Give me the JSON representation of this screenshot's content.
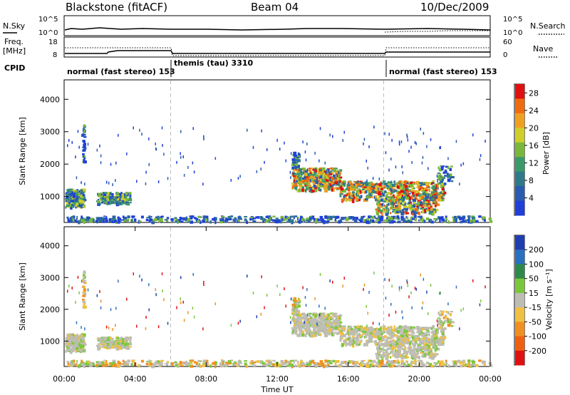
{
  "header": {
    "station": "Blackstone (fitACF)",
    "beam": "Beam 04",
    "date": "10/Dec/2009"
  },
  "summary_panel": {
    "left_labels": [
      "N.Sky",
      "Freq.",
      "[MHz]",
      "CPID"
    ],
    "right_labels": [
      "N.Search",
      "Nave"
    ],
    "nsky_ticks": [
      "10^5",
      "10^0"
    ],
    "nsearch_ticks": [
      "10^5",
      "10^0"
    ],
    "freq_ticks": [
      "18",
      "8"
    ],
    "nave_ticks": [
      "60",
      "0"
    ],
    "cpid_segments": [
      {
        "label": "normal (fast stereo) 153",
        "start_hour": 0
      },
      {
        "label": "themis (tau) 3310",
        "start_hour": 6
      },
      {
        "label": "normal (fast stereo) 153",
        "start_hour": 18
      }
    ]
  },
  "chart_data": [
    {
      "type": "heatmap",
      "name": "power",
      "ylabel": "Slant Range [km]",
      "yticks": [
        1000,
        2000,
        3000,
        4000
      ],
      "ylim": [
        200,
        4600
      ],
      "xlim_hours": [
        0,
        24
      ],
      "colorbar_label": "Power [dB]",
      "colorbar_ticks": [
        4,
        8,
        12,
        16,
        20,
        24,
        28
      ],
      "colorbar_range": [
        0,
        30
      ],
      "colorbar_colors": [
        "#1f3fd8",
        "#2a5bb0",
        "#2f7a8a",
        "#3a9a6a",
        "#79b83a",
        "#cfcf2a",
        "#f0a020",
        "#f06a10",
        "#e01010"
      ],
      "background_fill_colors": {
        "very_low": "#1f3fd8",
        "low": "#2a5bb0",
        "mid": "#3a9a6a",
        "high": "#cfcf2a",
        "very_high": "#e01010"
      }
    },
    {
      "type": "heatmap",
      "name": "velocity",
      "ylabel": "Slant Range [km]",
      "xlabel": "Time UT",
      "yticks": [
        1000,
        2000,
        3000,
        4000
      ],
      "ylim": [
        200,
        4600
      ],
      "xlim_hours": [
        0,
        24
      ],
      "xticks": [
        "00:00",
        "04:00",
        "08:00",
        "12:00",
        "16:00",
        "20:00",
        "00:00"
      ],
      "colorbar_label": "Velocity [m s⁻¹]",
      "colorbar_ticks": [
        "200",
        "100",
        "50",
        "15",
        "-15",
        "-50",
        "-100",
        "-200"
      ],
      "colorbar_colors": [
        "#1f3fb0",
        "#2a70c0",
        "#2e8a4a",
        "#7ac83a",
        "#bdbdb4",
        "#f0c040",
        "#f09020",
        "#f06010",
        "#e01010"
      ],
      "dashed_vlines_hours": [
        6,
        18
      ]
    }
  ]
}
